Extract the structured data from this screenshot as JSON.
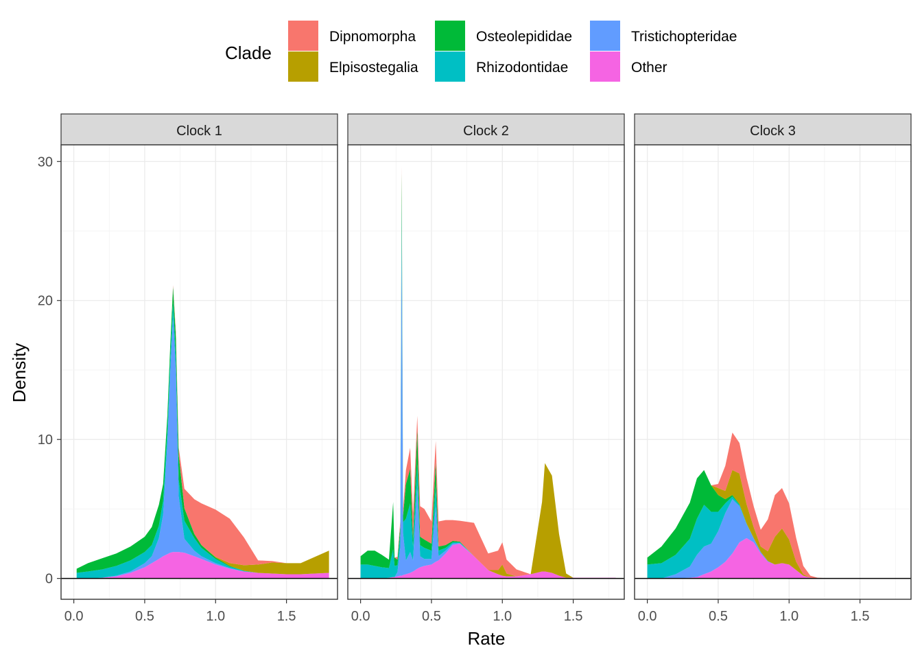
{
  "chart_data": {
    "type": "area",
    "stacked": true,
    "legend": {
      "title": "Clade",
      "placement": "top",
      "entries": [
        {
          "name": "Dipnomorpha",
          "color": "#F8766D"
        },
        {
          "name": "Elpisostegalia",
          "color": "#B79F00"
        },
        {
          "name": "Osteolepididae",
          "color": "#00BA38"
        },
        {
          "name": "Rhizodontidae",
          "color": "#00BFC4"
        },
        {
          "name": "Tristichopteridae",
          "color": "#619CFF"
        },
        {
          "name": "Other",
          "color": "#F564E3"
        }
      ]
    },
    "xlabel": "Rate",
    "ylabel": "Density",
    "xlim": [
      -0.09,
      1.86
    ],
    "ylim": [
      -1.5,
      31.2
    ],
    "xticks": [
      "0.0",
      "0.5",
      "1.0",
      "1.5"
    ],
    "xtick_values": [
      0,
      0.5,
      1.0,
      1.5
    ],
    "yticks": [
      "0",
      "10",
      "20",
      "30"
    ],
    "ytick_values": [
      0,
      10,
      20,
      30
    ],
    "grid": true,
    "stack_order_bottom_to_top": [
      "Other",
      "Tristichopteridae",
      "Rhizodontidae",
      "Osteolepididae",
      "Elpisostegalia",
      "Dipnomorpha"
    ],
    "panels": [
      {
        "title": "Clock 1",
        "x": [
          0.02,
          0.1,
          0.2,
          0.3,
          0.4,
          0.5,
          0.55,
          0.6,
          0.63,
          0.66,
          0.68,
          0.7,
          0.72,
          0.74,
          0.78,
          0.85,
          0.9,
          1.0,
          1.1,
          1.2,
          1.3,
          1.4,
          1.5,
          1.6,
          1.7,
          1.8
        ],
        "series": [
          {
            "name": "Other",
            "values": [
              0.0,
              0.0,
              0.05,
              0.15,
              0.4,
              0.8,
              1.1,
              1.4,
              1.6,
              1.75,
              1.85,
              1.9,
              1.9,
              1.9,
              1.85,
              1.6,
              1.4,
              1.0,
              0.7,
              0.5,
              0.4,
              0.35,
              0.3,
              0.3,
              0.35,
              0.4
            ]
          },
          {
            "name": "Tristichopteridae",
            "values": [
              0.0,
              0.0,
              0.0,
              0.05,
              0.1,
              0.3,
              0.5,
              1.5,
              3.0,
              8.0,
              13.0,
              17.0,
              13.0,
              4.0,
              1.0,
              0.4,
              0.2,
              0.1,
              0.05,
              0.0,
              0.0,
              0.0,
              0.0,
              0.0,
              0.0,
              0.0
            ]
          },
          {
            "name": "Rhizodontidae",
            "values": [
              0.4,
              0.5,
              0.6,
              0.7,
              0.8,
              0.8,
              0.8,
              0.9,
              1.0,
              1.0,
              1.0,
              1.0,
              1.0,
              1.2,
              1.3,
              0.9,
              0.6,
              0.3,
              0.1,
              0.05,
              0.0,
              0.0,
              0.0,
              0.0,
              0.0,
              0.0
            ]
          },
          {
            "name": "Osteolepididae",
            "values": [
              0.3,
              0.6,
              0.8,
              0.9,
              1.0,
              1.1,
              1.3,
              1.5,
              1.2,
              1.0,
              0.9,
              1.1,
              1.5,
              1.8,
              0.9,
              0.3,
              0.2,
              0.1,
              0.05,
              0.0,
              0.0,
              0.0,
              0.0,
              0.0,
              0.0,
              0.0
            ]
          },
          {
            "name": "Elpisostegalia",
            "values": [
              0.0,
              0.0,
              0.0,
              0.0,
              0.0,
              0.0,
              0.0,
              0.0,
              0.0,
              0.0,
              0.0,
              0.0,
              0.0,
              0.0,
              0.0,
              0.0,
              0.0,
              0.05,
              0.2,
              0.4,
              0.6,
              0.8,
              0.8,
              0.8,
              1.2,
              1.6
            ]
          },
          {
            "name": "Dipnomorpha",
            "values": [
              0.0,
              0.0,
              0.0,
              0.0,
              0.0,
              0.0,
              0.0,
              0.0,
              0.0,
              0.0,
              0.0,
              0.1,
              0.3,
              0.5,
              1.4,
              2.5,
              3.0,
              3.4,
              3.2,
              2.0,
              0.3,
              0.1,
              0.0,
              0.0,
              0.0,
              0.0
            ]
          }
        ]
      },
      {
        "title": "Clock 2",
        "x": [
          0.0,
          0.05,
          0.1,
          0.15,
          0.2,
          0.23,
          0.24,
          0.26,
          0.28,
          0.29,
          0.3,
          0.32,
          0.35,
          0.37,
          0.4,
          0.42,
          0.45,
          0.5,
          0.53,
          0.55,
          0.6,
          0.65,
          0.7,
          0.8,
          0.9,
          0.97,
          1.0,
          1.03,
          1.1,
          1.2,
          1.28,
          1.3,
          1.35,
          1.4,
          1.45,
          1.5,
          1.6,
          1.7,
          1.8
        ],
        "series": [
          {
            "name": "Other",
            "values": [
              0.0,
              0.0,
              0.0,
              0.0,
              0.05,
              0.1,
              0.1,
              0.15,
              0.2,
              0.2,
              0.25,
              0.3,
              0.4,
              0.5,
              0.7,
              0.8,
              0.9,
              1.0,
              1.2,
              1.3,
              1.8,
              2.4,
              2.5,
              1.6,
              0.6,
              0.3,
              0.2,
              0.15,
              0.15,
              0.3,
              0.5,
              0.5,
              0.4,
              0.2,
              0.05,
              0.05,
              0.05,
              0.05,
              0.05
            ]
          },
          {
            "name": "Tristichopteridae",
            "values": [
              0.0,
              0.0,
              0.0,
              0.0,
              0.0,
              0.0,
              0.0,
              0.3,
              2.0,
              25.0,
              3.0,
              1.0,
              1.5,
              0.8,
              6.0,
              0.8,
              0.5,
              0.4,
              4.0,
              0.3,
              0.2,
              0.1,
              0.05,
              0.0,
              0.0,
              0.0,
              0.0,
              0.0,
              0.0,
              0.0,
              0.0,
              0.0,
              0.0,
              0.0,
              0.0,
              0.0,
              0.0,
              0.0,
              0.0
            ]
          },
          {
            "name": "Rhizodontidae",
            "values": [
              1.0,
              1.0,
              0.9,
              0.8,
              0.7,
              2.0,
              0.8,
              0.5,
              1.0,
              2.0,
              0.8,
              3.0,
              3.5,
              1.0,
              1.5,
              0.8,
              0.8,
              0.6,
              1.5,
              0.4,
              0.2,
              0.1,
              0.05,
              0.0,
              0.0,
              0.0,
              0.0,
              0.0,
              0.0,
              0.0,
              0.0,
              0.0,
              0.0,
              0.0,
              0.0,
              0.0,
              0.0,
              0.0,
              0.0
            ]
          },
          {
            "name": "Osteolepididae",
            "values": [
              0.6,
              1.0,
              1.1,
              0.9,
              0.6,
              3.4,
              0.6,
              0.4,
              0.6,
              2.0,
              0.5,
              2.5,
              2.5,
              0.6,
              2.5,
              0.6,
              0.6,
              0.5,
              1.7,
              0.3,
              0.2,
              0.1,
              0.05,
              0.0,
              0.0,
              0.0,
              0.0,
              0.0,
              0.0,
              0.0,
              0.0,
              0.0,
              0.0,
              0.0,
              0.0,
              0.0,
              0.0,
              0.0,
              0.0
            ]
          },
          {
            "name": "Elpisostegalia",
            "values": [
              0.0,
              0.0,
              0.0,
              0.0,
              0.0,
              0.0,
              0.0,
              0.0,
              0.0,
              0.0,
              0.0,
              0.0,
              0.0,
              0.0,
              0.0,
              0.0,
              0.0,
              0.0,
              0.0,
              0.0,
              0.0,
              0.0,
              0.0,
              0.0,
              0.0,
              0.3,
              0.8,
              0.2,
              0.0,
              0.0,
              5.0,
              7.8,
              7.0,
              3.0,
              0.3,
              0.0,
              0.0,
              0.0,
              0.0
            ]
          },
          {
            "name": "Dipnomorpha",
            "values": [
              0.0,
              0.0,
              0.0,
              0.0,
              0.0,
              0.0,
              0.0,
              0.2,
              0.3,
              0.5,
              0.5,
              1.0,
              1.5,
              1.8,
              1.0,
              2.2,
              2.2,
              1.6,
              1.5,
              1.8,
              1.8,
              1.5,
              1.5,
              2.4,
              1.2,
              1.4,
              1.6,
              1.0,
              0.5,
              0.0,
              0.0,
              0.0,
              0.0,
              0.0,
              0.0,
              0.0,
              0.0,
              0.0,
              0.0
            ]
          }
        ]
      },
      {
        "title": "Clock 3",
        "x": [
          0.0,
          0.1,
          0.2,
          0.3,
          0.35,
          0.4,
          0.45,
          0.5,
          0.55,
          0.6,
          0.65,
          0.7,
          0.75,
          0.8,
          0.85,
          0.9,
          0.95,
          1.0,
          1.05,
          1.1,
          1.15,
          1.2,
          1.3,
          1.5,
          1.8
        ],
        "series": [
          {
            "name": "Other",
            "values": [
              0.0,
              0.0,
              0.0,
              0.05,
              0.1,
              0.3,
              0.5,
              0.8,
              1.2,
              1.8,
              2.6,
              2.9,
              2.6,
              1.8,
              1.2,
              1.0,
              1.1,
              1.0,
              0.6,
              0.2,
              0.05,
              0.0,
              0.0,
              0.0,
              0.0
            ]
          },
          {
            "name": "Tristichopteridae",
            "values": [
              0.0,
              0.0,
              0.3,
              0.8,
              1.6,
              2.0,
              2.0,
              2.6,
              3.5,
              3.9,
              2.6,
              1.0,
              0.3,
              0.1,
              0.05,
              0.0,
              0.0,
              0.0,
              0.0,
              0.0,
              0.0,
              0.0,
              0.0,
              0.0,
              0.0
            ]
          },
          {
            "name": "Rhizodontidae",
            "values": [
              1.0,
              1.1,
              1.4,
              2.0,
              2.6,
              3.0,
              2.3,
              1.4,
              0.7,
              0.2,
              0.1,
              0.05,
              0.0,
              0.0,
              0.0,
              0.0,
              0.0,
              0.0,
              0.0,
              0.0,
              0.0,
              0.0,
              0.0,
              0.0,
              0.0
            ]
          },
          {
            "name": "Osteolepididae",
            "values": [
              0.5,
              1.2,
              1.9,
              2.6,
              2.9,
              2.5,
              1.9,
              1.2,
              0.3,
              0.1,
              0.05,
              0.0,
              0.0,
              0.0,
              0.0,
              0.0,
              0.0,
              0.0,
              0.0,
              0.0,
              0.0,
              0.0,
              0.0,
              0.0,
              0.0
            ]
          },
          {
            "name": "Elpisostegalia",
            "values": [
              0.0,
              0.0,
              0.0,
              0.0,
              0.0,
              0.0,
              0.0,
              0.5,
              0.6,
              1.8,
              2.2,
              1.4,
              0.8,
              0.4,
              0.7,
              2.0,
              2.5,
              1.8,
              0.6,
              0.1,
              0.0,
              0.0,
              0.0,
              0.0,
              0.0
            ]
          },
          {
            "name": "Dipnomorpha",
            "values": [
              0.0,
              0.0,
              0.0,
              0.0,
              0.0,
              0.0,
              0.0,
              0.3,
              1.8,
              2.7,
              2.2,
              1.9,
              1.5,
              1.2,
              2.3,
              3.0,
              2.9,
              2.6,
              1.7,
              0.6,
              0.15,
              0.05,
              0.0,
              0.0,
              0.0
            ]
          }
        ]
      }
    ]
  }
}
